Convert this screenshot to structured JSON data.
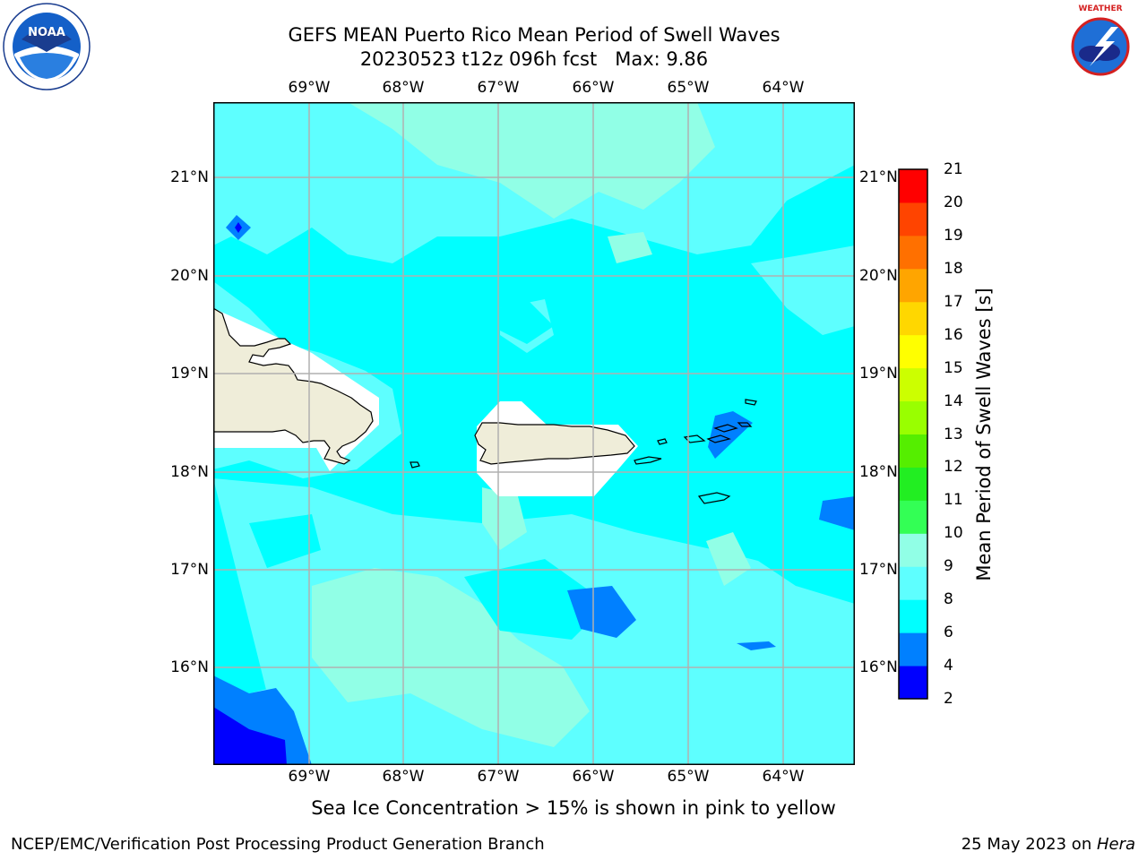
{
  "title": {
    "line1": "GEFS MEAN Puerto Rico Mean Period of Swell Waves",
    "line2": "20230523 t12z 096h fcst   Max: 9.86"
  },
  "logos": {
    "left": {
      "name": "noaa-logo",
      "text": "NOAA"
    },
    "right": {
      "name": "nws-logo",
      "text": "NATIONAL WEATHER SERVICE"
    }
  },
  "map": {
    "lon_labels": [
      "69°W",
      "68°W",
      "67°W",
      "66°W",
      "65°W",
      "64°W"
    ],
    "lat_labels": [
      "21°N",
      "20°N",
      "19°N",
      "18°N",
      "17°N",
      "16°N"
    ],
    "colors": {
      "c2": "#0000ff",
      "c4": "#0080ff",
      "c6": "#00ffff",
      "c8": "#5effff",
      "c9": "#91ffe6",
      "land": "#efedd9",
      "mask": "#ffffff",
      "grid": "#b0b0b0"
    }
  },
  "colorbar": {
    "title": "Mean Period of Swell Waves [s]",
    "levels": [
      "2",
      "4",
      "6",
      "8",
      "9",
      "10",
      "11",
      "12",
      "13",
      "14",
      "15",
      "16",
      "17",
      "18",
      "19",
      "20",
      "21"
    ],
    "colors": [
      "#0000ff",
      "#0080ff",
      "#00ffff",
      "#5effff",
      "#91ffe6",
      "#33ff55",
      "#22ee22",
      "#55ee00",
      "#99ff00",
      "#ccff00",
      "#ffff00",
      "#ffd700",
      "#ffa500",
      "#ff7000",
      "#ff4400",
      "#ff0000"
    ]
  },
  "footnote": "Sea Ice Concentration > 15% is shown in pink to yellow",
  "footer": {
    "left": "NCEP/EMC/Verification Post Processing Product Generation Branch",
    "right_date": "25 May 2023 on ",
    "right_host": "Hera"
  }
}
